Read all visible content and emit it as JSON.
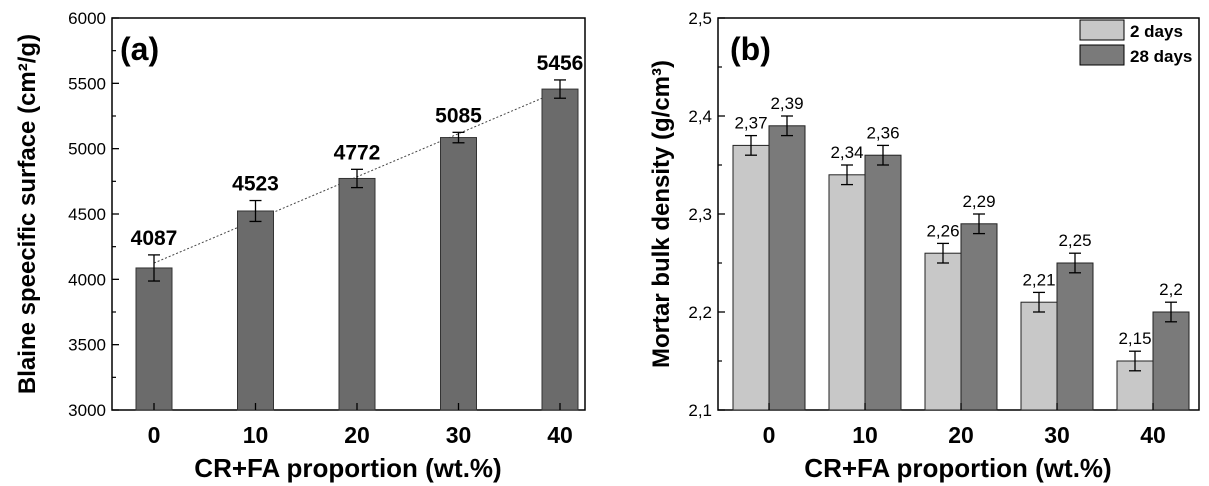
{
  "chart_data": [
    {
      "type": "bar",
      "panel_label": "(a)",
      "categories": [
        "0",
        "10",
        "20",
        "30",
        "40"
      ],
      "values": [
        4087,
        4523,
        4772,
        5085,
        5456
      ],
      "errors": [
        100,
        80,
        70,
        40,
        70
      ],
      "value_labels": [
        "4087",
        "4523",
        "4772",
        "5085",
        "5456"
      ],
      "xlabel": "CR+FA proportion (wt.%)",
      "ylabel": "Blaine speecific surface (cm²/g)",
      "ylim": [
        3000,
        6000
      ],
      "yticks": [
        3000,
        3500,
        4000,
        4500,
        5000,
        5500,
        6000
      ],
      "ytick_labels": [
        "3000",
        "3500",
        "4000",
        "4500",
        "5000",
        "5500",
        "6000"
      ],
      "trendline": true,
      "bar_color": "#6b6b6b"
    },
    {
      "type": "bar",
      "panel_label": "(b)",
      "categories": [
        "0",
        "10",
        "20",
        "30",
        "40"
      ],
      "series": [
        {
          "name": "2 days",
          "values": [
            2.37,
            2.34,
            2.26,
            2.21,
            2.15
          ],
          "errors": [
            0.01,
            0.01,
            0.01,
            0.01,
            0.01
          ],
          "value_labels": [
            "2,37",
            "2,34",
            "2,26",
            "2,21",
            "2,15"
          ],
          "color": "#c8c8c8"
        },
        {
          "name": "28 days",
          "values": [
            2.39,
            2.36,
            2.29,
            2.25,
            2.2
          ],
          "errors": [
            0.01,
            0.01,
            0.01,
            0.01,
            0.01
          ],
          "value_labels": [
            "2,39",
            "2,36",
            "2,29",
            "2,25",
            "2,2"
          ],
          "color": "#7a7a7a"
        }
      ],
      "xlabel": "CR+FA proportion (wt.%)",
      "ylabel": "Mortar bulk density (g/cm³)",
      "ylim": [
        2.1,
        2.5
      ],
      "yticks": [
        2.1,
        2.2,
        2.3,
        2.4,
        2.5
      ],
      "ytick_labels": [
        "2,1",
        "2,2",
        "2,3",
        "2,4",
        "2,5"
      ],
      "legend_position": "top-right"
    }
  ]
}
